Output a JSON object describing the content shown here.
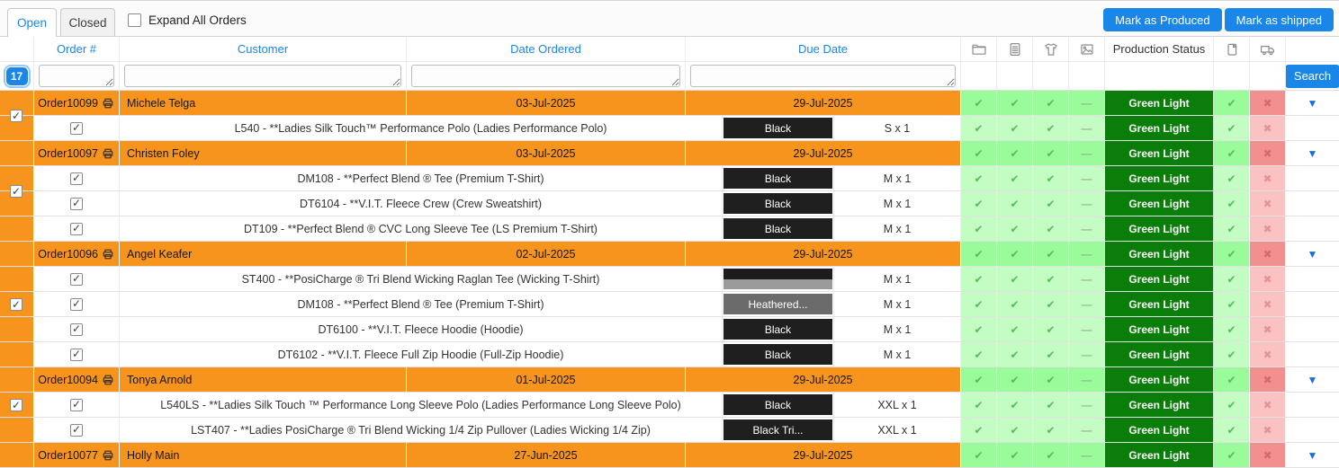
{
  "tabs": {
    "open": "Open",
    "closed": "Closed",
    "active": "Open"
  },
  "expand_all_label": "Expand All Orders",
  "buttons": {
    "mark_produced": "Mark as Produced",
    "mark_shipped": "Mark as shipped",
    "search": "Search"
  },
  "result_count": "17",
  "columns": {
    "order": "Order #",
    "customer": "Customer",
    "date_ordered": "Date Ordered",
    "due_date": "Due Date",
    "production_status": "Production Status",
    "header_icons": [
      "folder-icon",
      "document-icon",
      "shirt-icon",
      "image-icon"
    ],
    "right_icons": [
      "package-icon",
      "truck-icon"
    ]
  },
  "glyphs": {
    "checkbox_tick": "✓",
    "expand_arrow": "▼"
  },
  "status_legend": {
    "check": "✔",
    "dash": "—",
    "cross": "✖"
  },
  "colors": {
    "accent_blue": "#1a86e8",
    "row_orange": "#f7941e",
    "green_light_badge": "#0b7d0b",
    "cell_green_order": "#99fb99",
    "cell_green_item": "#c4fdc4",
    "cell_red_order": "#f28f8f",
    "cell_red_item": "#fac2c2"
  },
  "orders": [
    {
      "order_no": "Order10099",
      "customer": "Michele Telga",
      "date_ordered": "03-Jul-2025",
      "due_date": "29-Jul-2025",
      "status": {
        "folder": "check",
        "document": "check",
        "shirt": "check",
        "image": "dash",
        "production": "Green Light",
        "produced": "check",
        "shipped": "cross"
      },
      "items": [
        {
          "description": "L540 - **Ladies Silk Touch™ Performance Polo (Ladies Performance Polo)",
          "color": {
            "label": "Black",
            "bg": "#1f1f1f"
          },
          "size": "S x 1"
        }
      ]
    },
    {
      "order_no": "Order10097",
      "customer": "Christen Foley",
      "date_ordered": "03-Jul-2025",
      "due_date": "29-Jul-2025",
      "status": {
        "folder": "check",
        "document": "check",
        "shirt": "check",
        "image": "dash",
        "production": "Green Light",
        "produced": "check",
        "shipped": "cross"
      },
      "items": [
        {
          "description": "DM108 - **Perfect Blend ® Tee (Premium T-Shirt)",
          "color": {
            "label": "Black",
            "bg": "#1f1f1f"
          },
          "size": "M x 1"
        },
        {
          "description": "DT6104 - **V.I.T. Fleece Crew (Crew Sweatshirt)",
          "color": {
            "label": "Black",
            "bg": "#1f1f1f"
          },
          "size": "M x 1"
        },
        {
          "description": "DT109 - **Perfect Blend ® CVC Long Sleeve Tee (LS Premium T-Shirt)",
          "color": {
            "label": "Black",
            "bg": "#1f1f1f"
          },
          "size": "M x 1"
        }
      ]
    },
    {
      "order_no": "Order10096",
      "customer": "Angel Keafer",
      "date_ordered": "02-Jul-2025",
      "due_date": "29-Jul-2025",
      "status": {
        "folder": "check",
        "document": "check",
        "shirt": "check",
        "image": "dash",
        "production": "Green Light",
        "produced": "check",
        "shipped": "cross"
      },
      "items": [
        {
          "description": "ST400 - **PosiCharge ® Tri Blend Wicking Raglan Tee (Wicking T-Shirt)",
          "color": {
            "label": "",
            "split": [
              "#1c1c1c",
              "#9b9b9b"
            ]
          },
          "size": "M x 1"
        },
        {
          "description": "DM108 - **Perfect Blend ® Tee (Premium T-Shirt)",
          "color": {
            "label": "Heathered...",
            "bg": "#6b6b6b"
          },
          "size": "M x 1"
        },
        {
          "description": "DT6100 - **V.I.T. Fleece Hoodie (Hoodie)",
          "color": {
            "label": "Black",
            "bg": "#1f1f1f"
          },
          "size": "M x 1"
        },
        {
          "description": "DT6102 - **V.I.T. Fleece Full Zip Hoodie (Full-Zip Hoodie)",
          "color": {
            "label": "Black",
            "bg": "#1f1f1f"
          },
          "size": "M x 1"
        }
      ]
    },
    {
      "order_no": "Order10094",
      "customer": "Tonya Arnold",
      "date_ordered": "01-Jul-2025",
      "due_date": "29-Jul-2025",
      "status": {
        "folder": "check",
        "document": "check",
        "shirt": "check",
        "image": "dash",
        "production": "Green Light",
        "produced": "check",
        "shipped": "cross"
      },
      "items": [
        {
          "description": "L540LS - **Ladies Silk Touch ™ Performance Long Sleeve Polo (Ladies Performance Long Sleeve Polo)",
          "color": {
            "label": "Black",
            "bg": "#1f1f1f"
          },
          "size": "XXL x 1"
        },
        {
          "description": "LST407 - **Ladies PosiCharge ® Tri Blend Wicking 1/4 Zip Pullover (Ladies Wicking 1/4 Zip)",
          "color": {
            "label": "Black Tri...",
            "bg": "#1f1f1f"
          },
          "size": "XXL x 1"
        }
      ]
    },
    {
      "order_no": "Order10077",
      "customer": "Holly Main",
      "date_ordered": "27-Jun-2025",
      "due_date": "29-Jul-2025",
      "status": {
        "folder": "check",
        "document": "check",
        "shirt": "check",
        "image": "dash",
        "production": "Green Light",
        "produced": "check",
        "shipped": "cross"
      },
      "items": []
    }
  ]
}
